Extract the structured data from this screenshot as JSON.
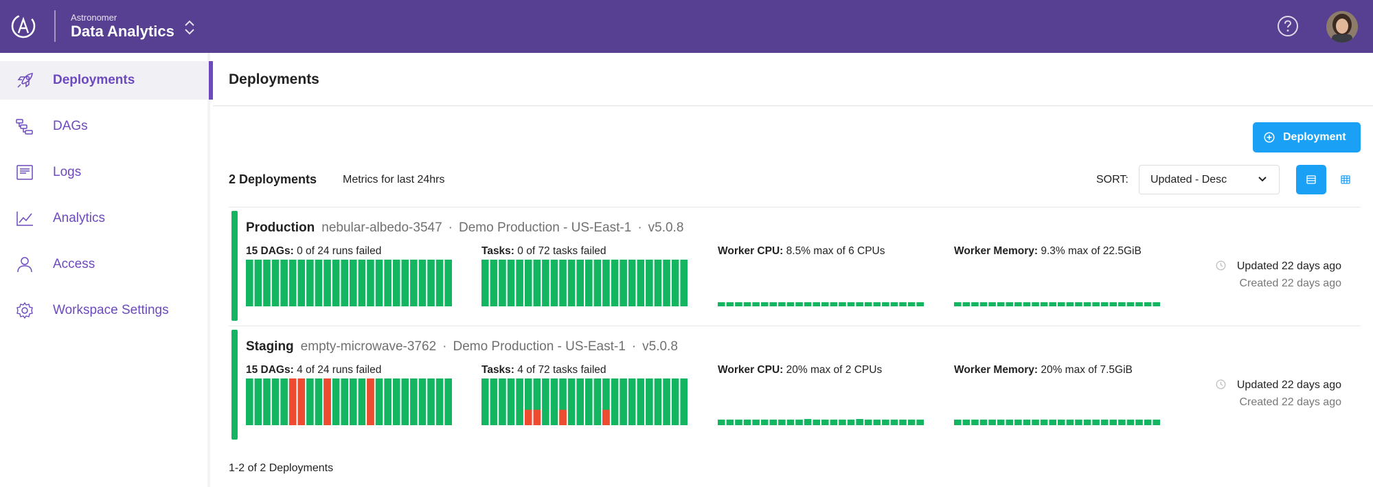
{
  "header": {
    "org_label": "Astronomer",
    "workspace_name": "Data Analytics",
    "brand_color": "#574091"
  },
  "sidebar": {
    "items": [
      {
        "label": "Deployments",
        "icon": "rocket-icon",
        "active": true
      },
      {
        "label": "DAGs",
        "icon": "dag-icon",
        "active": false
      },
      {
        "label": "Logs",
        "icon": "logs-icon",
        "active": false
      },
      {
        "label": "Analytics",
        "icon": "analytics-icon",
        "active": false
      },
      {
        "label": "Access",
        "icon": "user-icon",
        "active": false
      },
      {
        "label": "Workspace Settings",
        "icon": "gear-icon",
        "active": false
      }
    ]
  },
  "main": {
    "title": "Deployments",
    "add_button_label": "Deployment",
    "count_label": "2 Deployments",
    "metrics_label": "Metrics for last 24hrs",
    "sort_label": "SORT:",
    "sort_value": "Updated - Desc",
    "footer": "1-2 of 2 Deployments"
  },
  "colors": {
    "success": "#13b560",
    "failed": "#ee4b30",
    "accent": "#1aa0f5",
    "nav": "#6d49be"
  },
  "deployments": [
    {
      "name": "Production",
      "release": "nebular-albedo-3547",
      "description": "Demo Production - US-East-1",
      "version": "v5.0.8",
      "dags_label": "15 DAGs:",
      "dags_value": "0 of 24 runs failed",
      "tasks_label": "Tasks:",
      "tasks_value": "0 of 72 tasks failed",
      "cpu_label": "Worker CPU:",
      "cpu_value": "8.5% max of 6 CPUs",
      "mem_label": "Worker Memory:",
      "mem_value": "9.3% max of 22.5GiB",
      "updated": "Updated 22 days ago",
      "created": "Created 22 days ago",
      "dag_runs": [
        0,
        0,
        0,
        0,
        0,
        0,
        0,
        0,
        0,
        0,
        0,
        0,
        0,
        0,
        0,
        0,
        0,
        0,
        0,
        0,
        0,
        0,
        0,
        0
      ],
      "task_runs": [
        0,
        0,
        0,
        0,
        0,
        0,
        0,
        0,
        0,
        0,
        0,
        0,
        0,
        0,
        0,
        0,
        0,
        0,
        0,
        0,
        0,
        0,
        0,
        0
      ],
      "cpu_levels": [
        0.12,
        0.12,
        0.12,
        0.12,
        0.12,
        0.12,
        0.12,
        0.12,
        0.12,
        0.12,
        0.12,
        0.12,
        0.12,
        0.12,
        0.12,
        0.12,
        0.12,
        0.12,
        0.12,
        0.12,
        0.12,
        0.12,
        0.12,
        0.12
      ],
      "mem_levels": [
        0.12,
        0.12,
        0.12,
        0.12,
        0.12,
        0.12,
        0.12,
        0.12,
        0.14,
        0.14,
        0.14,
        0.14,
        0.14,
        0.14,
        0.14,
        0.14,
        0.14,
        0.14,
        0.14,
        0.14,
        0.14,
        0.14,
        0.14,
        0.14
      ]
    },
    {
      "name": "Staging",
      "release": "empty-microwave-3762",
      "description": "Demo Production - US-East-1",
      "version": "v5.0.8",
      "dags_label": "15 DAGs:",
      "dags_value": "4 of 24 runs failed",
      "tasks_label": "Tasks:",
      "tasks_value": "4 of 72 tasks failed",
      "cpu_label": "Worker CPU:",
      "cpu_value": "20% max of 2 CPUs",
      "mem_label": "Worker Memory:",
      "mem_value": "20% max of 7.5GiB",
      "updated": "Updated 22 days ago",
      "created": "Created 22 days ago",
      "dag_runs": [
        0,
        0,
        0,
        0,
        0,
        1,
        1,
        0,
        0,
        1,
        0,
        0,
        0,
        0,
        1,
        0,
        0,
        0,
        0,
        0,
        0,
        0,
        0,
        0
      ],
      "task_runs": [
        0,
        0,
        0,
        0,
        0,
        0.33,
        0.33,
        0,
        0,
        0.33,
        0,
        0,
        0,
        0,
        0.33,
        0,
        0,
        0,
        0,
        0,
        0,
        0,
        0,
        0
      ],
      "cpu_levels": [
        0.2,
        0.2,
        0.2,
        0.2,
        0.2,
        0.2,
        0.2,
        0.2,
        0.2,
        0.2,
        0.22,
        0.2,
        0.2,
        0.2,
        0.2,
        0.2,
        0.22,
        0.2,
        0.2,
        0.2,
        0.2,
        0.2,
        0.2,
        0.2
      ],
      "mem_levels": [
        0.2,
        0.2,
        0.2,
        0.2,
        0.2,
        0.2,
        0.2,
        0.2,
        0.2,
        0.2,
        0.2,
        0.2,
        0.2,
        0.2,
        0.2,
        0.2,
        0.2,
        0.2,
        0.2,
        0.2,
        0.2,
        0.2,
        0.2,
        0.2
      ]
    }
  ]
}
